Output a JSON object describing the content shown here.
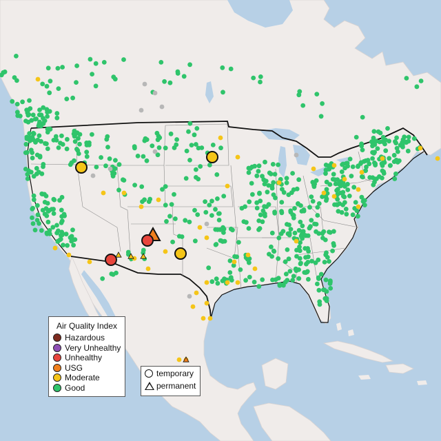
{
  "legend": {
    "title": "Air Quality Index",
    "categories": [
      {
        "label": "Hazardous",
        "color": "#7e2b1f"
      },
      {
        "label": "Very Unhealthy",
        "color": "#8e4fb5"
      },
      {
        "label": "Unhealthy",
        "color": "#e8453c"
      },
      {
        "label": "USG",
        "color": "#f07f1c"
      },
      {
        "label": "Moderate",
        "color": "#f5c518"
      },
      {
        "label": "Good",
        "color": "#2fc46b"
      }
    ]
  },
  "shape_legend": {
    "temporary": "temporary",
    "permanent": "permanent"
  },
  "colors": {
    "ocean": "#b7d0e6",
    "land": "#f0ecea",
    "land_alt": "#ece8e6",
    "no_data": "#b7b7b7"
  }
}
